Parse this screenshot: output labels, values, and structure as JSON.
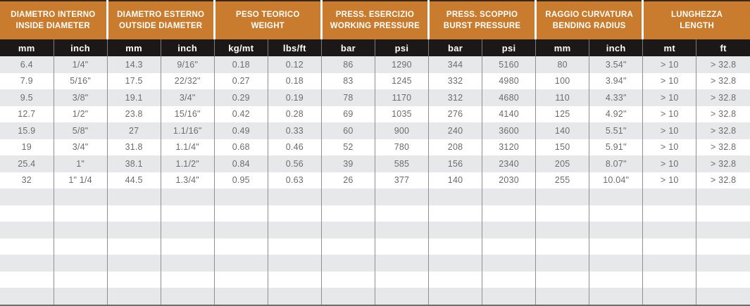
{
  "chart_data": {
    "type": "table",
    "column_groups": [
      {
        "it": "DIAMETRO INTERNO",
        "en": "INSIDE DIAMETER"
      },
      {
        "it": "DIAMETRO ESTERNO",
        "en": "OUTSIDE DIAMETER"
      },
      {
        "it": "PESO TEORICO",
        "en": "WEIGHT"
      },
      {
        "it": "PRESS. ESERCIZIO",
        "en": "WORKING PRESSURE"
      },
      {
        "it": "PRESS. SCOPPIO",
        "en": "BURST PRESSURE"
      },
      {
        "it": "RAGGIO CURVATURA",
        "en": "BENDING RADIUS"
      },
      {
        "it": "LUNGHEZZA",
        "en": "LENGTH"
      }
    ],
    "units": [
      "mm",
      "inch",
      "mm",
      "inch",
      "kg/mt",
      "lbs/ft",
      "bar",
      "psi",
      "bar",
      "psi",
      "mm",
      "inch",
      "mt",
      "ft"
    ],
    "rows": [
      [
        "6.4",
        "1/4\"",
        "14.3",
        "9/16\"",
        "0.18",
        "0.12",
        "86",
        "1290",
        "344",
        "5160",
        "80",
        "3.54\"",
        "> 10",
        "> 32.8"
      ],
      [
        "7.9",
        "5/16\"",
        "17.5",
        "22/32\"",
        "0.27",
        "0.18",
        "83",
        "1245",
        "332",
        "4980",
        "100",
        "3.94\"",
        "> 10",
        "> 32.8"
      ],
      [
        "9.5",
        "3/8\"",
        "19.1",
        "3/4\"",
        "0.29",
        "0.19",
        "78",
        "1170",
        "312",
        "4680",
        "110",
        "4.33\"",
        "> 10",
        "> 32.8"
      ],
      [
        "12.7",
        "1/2\"",
        "23.8",
        "15/16\"",
        "0.42",
        "0.28",
        "69",
        "1035",
        "276",
        "4140",
        "125",
        "4.92\"",
        "> 10",
        "> 32.8"
      ],
      [
        "15.9",
        "5/8\"",
        "27",
        "1.1/16\"",
        "0.49",
        "0.33",
        "60",
        "900",
        "240",
        "3600",
        "140",
        "5.51\"",
        "> 10",
        "> 32.8"
      ],
      [
        "19",
        "3/4\"",
        "31.8",
        "1.1/4\"",
        "0.68",
        "0.46",
        "52",
        "780",
        "208",
        "3120",
        "150",
        "5.91\"",
        "> 10",
        "> 32.8"
      ],
      [
        "25.4",
        "1\"",
        "38.1",
        "1.1/2\"",
        "0.84",
        "0.56",
        "39",
        "585",
        "156",
        "2340",
        "205",
        "8.07\"",
        "> 10",
        "> 32.8"
      ],
      [
        "32",
        "1\" 1/4",
        "44.5",
        "1.3/4\"",
        "0.95",
        "0.63",
        "26",
        "377",
        "140",
        "2030",
        "255",
        "10.04\"",
        "> 10",
        "> 32.8"
      ]
    ],
    "empty_row_count": 7,
    "layout": {
      "grid": "on",
      "striped": true,
      "columns": 14
    }
  },
  "colors": {
    "header_orange": "#C97C2E",
    "unit_row_black": "#1C1818",
    "stripe_gray": "#E7E8E9",
    "divider_gray": "#8F8F8F",
    "data_text_gray": "#6D6D6D",
    "bottom_border_gray": "#6E6E6E"
  }
}
